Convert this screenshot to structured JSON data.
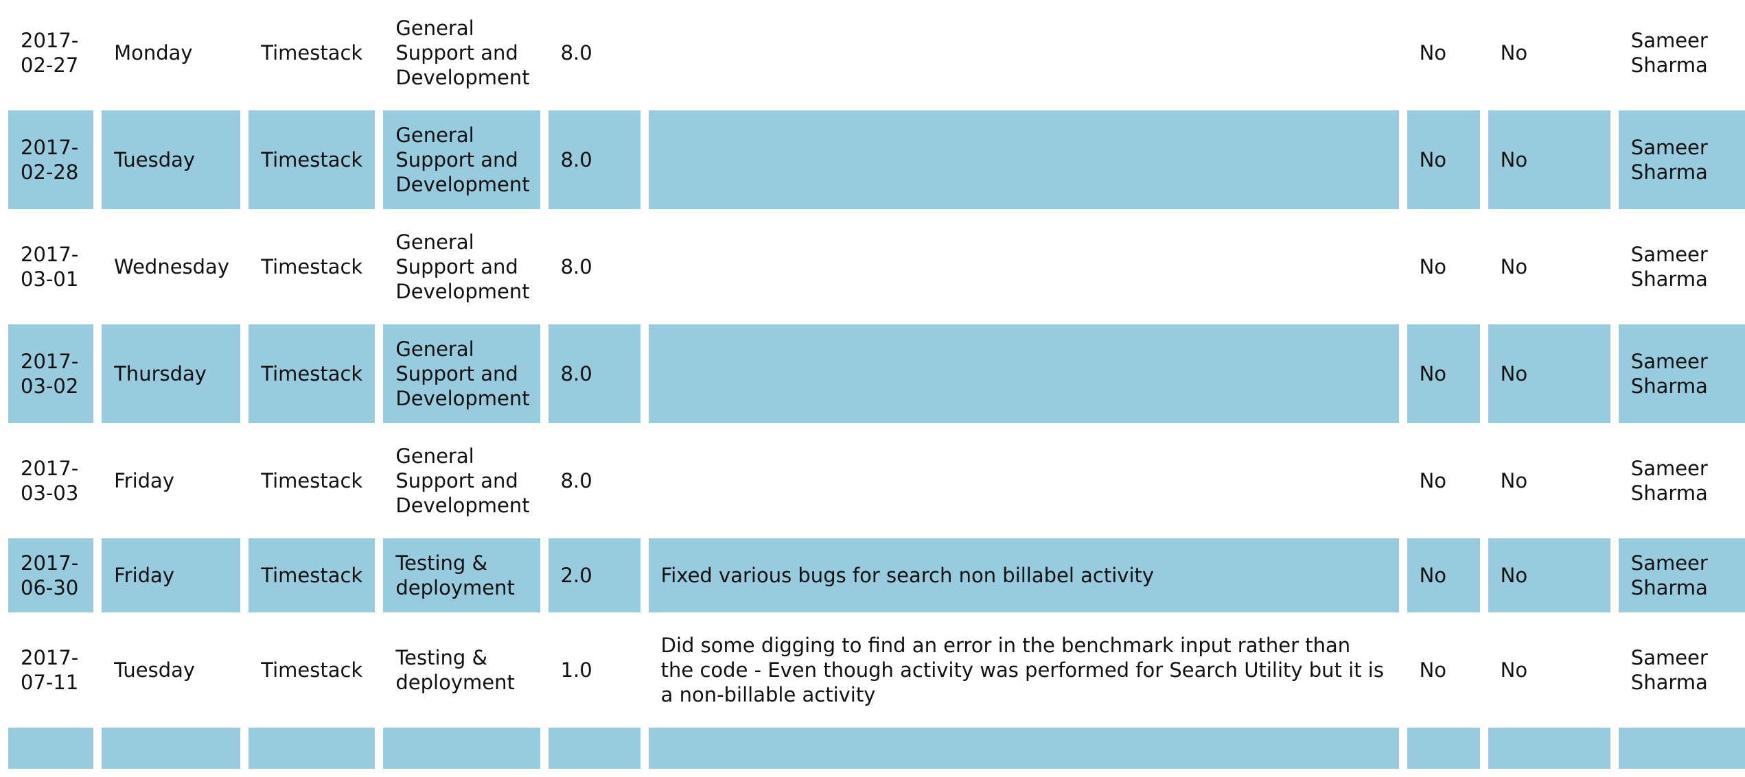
{
  "timesheet": {
    "colors": {
      "alt_row": "#99cbdf",
      "row": "#ffffff",
      "text": "#111111"
    },
    "rows": [
      {
        "date": "2017-02-27",
        "day": "Monday",
        "project": "Timestack",
        "task": "General Support and Development",
        "hours": "8.0",
        "description": "",
        "flag_a": "No",
        "flag_b": "No",
        "user": "Sameer Sharma"
      },
      {
        "date": "2017-02-28",
        "day": "Tuesday",
        "project": "Timestack",
        "task": "General Support and Development",
        "hours": "8.0",
        "description": "",
        "flag_a": "No",
        "flag_b": "No",
        "user": "Sameer Sharma"
      },
      {
        "date": "2017-03-01",
        "day": "Wednesday",
        "project": "Timestack",
        "task": "General Support and Development",
        "hours": "8.0",
        "description": "",
        "flag_a": "No",
        "flag_b": "No",
        "user": "Sameer Sharma"
      },
      {
        "date": "2017-03-02",
        "day": "Thursday",
        "project": "Timestack",
        "task": "General Support and Development",
        "hours": "8.0",
        "description": "",
        "flag_a": "No",
        "flag_b": "No",
        "user": "Sameer Sharma"
      },
      {
        "date": "2017-03-03",
        "day": "Friday",
        "project": "Timestack",
        "task": "General Support and Development",
        "hours": "8.0",
        "description": "",
        "flag_a": "No",
        "flag_b": "No",
        "user": "Sameer Sharma"
      },
      {
        "date": "2017-06-30",
        "day": "Friday",
        "project": "Timestack",
        "task": "Testing & deployment",
        "hours": "2.0",
        "description": "Fixed various bugs for search non billabel activity",
        "flag_a": "No",
        "flag_b": "No",
        "user": "Sameer Sharma"
      },
      {
        "date": "2017-07-11",
        "day": "Tuesday",
        "project": "Timestack",
        "task": "Testing & deployment",
        "hours": "1.0",
        "description": "Did some digging to find an error in the benchmark input rather than the code - Even though activity was performed for Search Utility but it is a non-billable activity",
        "flag_a": "No",
        "flag_b": "No",
        "user": "Sameer Sharma"
      }
    ]
  }
}
